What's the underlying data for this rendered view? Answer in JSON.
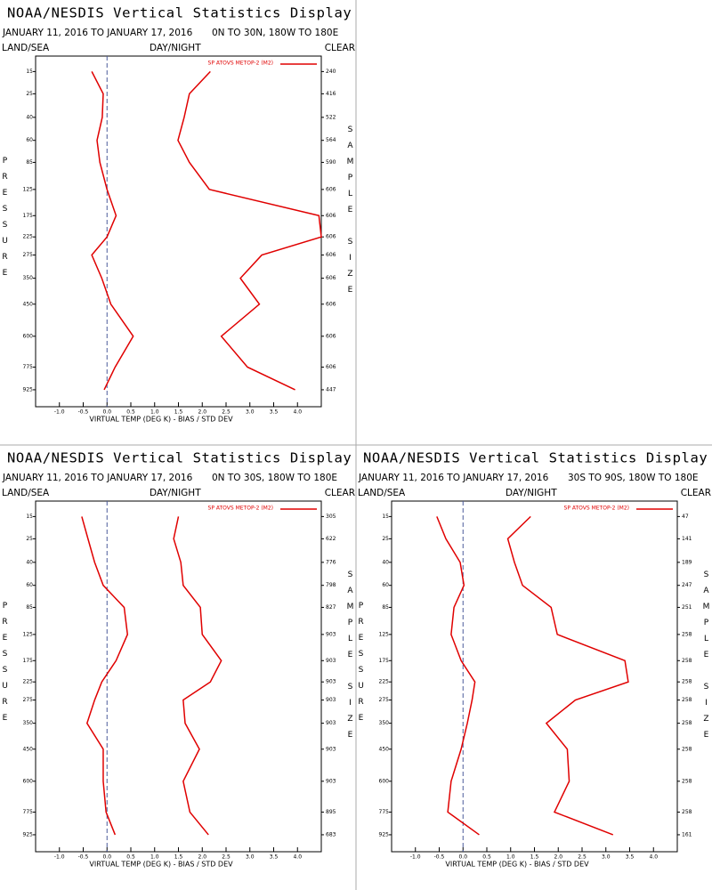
{
  "chart_data": [
    {
      "type": "line",
      "title": "NOAA/NESDIS Vertical Statistics Display",
      "date_range": "JANUARY 11, 2016 TO JANUARY 17, 2016",
      "region": "0N TO 30N, 180W TO 180E",
      "land_sea": "LAND/SEA",
      "day_night": "DAY/NIGHT",
      "clear": "CLEAR",
      "y_label": "PRESSURE",
      "y2_label": "SAMPLE SIZE",
      "x_label": "VIRTUAL TEMP (DEG K) - BIAS / STD DEV",
      "legend": "SP ATOVS METOP-2 (M2)",
      "y": [
        15,
        25,
        40,
        60,
        85,
        125,
        175,
        225,
        275,
        350,
        450,
        600,
        775,
        925
      ],
      "yticks": [
        15,
        25,
        40,
        60,
        85,
        125,
        175,
        225,
        275,
        350,
        450,
        600,
        775,
        925
      ],
      "ylim": [
        10,
        1050
      ],
      "xlim": [
        -1.5,
        4.5
      ],
      "xticks": [
        {
          "value": -1,
          "label": "-1.0"
        },
        -0.5,
        {
          "value": 0,
          "label": "0.0"
        },
        0.5,
        {
          "value": 1,
          "label": "1.0"
        },
        1.5,
        {
          "value": 2,
          "label": "2.0"
        },
        2.5,
        {
          "value": 3,
          "label": "3.0"
        },
        3.5,
        {
          "value": 4,
          "label": "4.0"
        }
      ],
      "sample_size": [
        240,
        416,
        522,
        564,
        590,
        606,
        606,
        606,
        606,
        606,
        606,
        606,
        606,
        447
      ],
      "series": [
        {
          "color": "#e00000",
          "values": [
            -0.32,
            -0.08,
            -0.1,
            -0.21,
            -0.15,
            0.0,
            0.19,
            0.0,
            -0.32,
            -0.11,
            0.08,
            0.55,
            0.17,
            -0.06
          ]
        },
        {
          "color": "#e00000",
          "values": [
            2.17,
            1.73,
            1.62,
            1.49,
            1.73,
            2.15,
            4.45,
            4.5,
            3.25,
            2.8,
            3.2,
            2.4,
            2.95,
            3.95
          ]
        }
      ]
    },
    {
      "type": "line",
      "title": "NOAA/NESDIS Vertical Statistics Display",
      "date_range": "JANUARY 11, 2016 TO JANUARY 17, 2016",
      "region": "0N TO 30S, 180W TO 180E",
      "land_sea": "LAND/SEA",
      "day_night": "DAY/NIGHT",
      "clear": "CLEAR",
      "y_label": "PRESSURE",
      "y2_label": "SAMPLE SIZE",
      "x_label": "VIRTUAL TEMP (DEG K) - BIAS / STD DEV",
      "legend": "SP ATOVS METOP-2 (M2)",
      "y": [
        15,
        25,
        40,
        60,
        85,
        125,
        175,
        225,
        275,
        350,
        450,
        600,
        775,
        925
      ],
      "yticks": [
        15,
        25,
        40,
        60,
        85,
        125,
        175,
        225,
        275,
        350,
        450,
        600,
        775,
        925
      ],
      "ylim": [
        10,
        1050
      ],
      "xlim": [
        -1.5,
        4.5
      ],
      "xticks": [
        {
          "value": -1,
          "label": "-1.0"
        },
        -0.5,
        {
          "value": 0,
          "label": "0.0"
        },
        0.5,
        {
          "value": 1,
          "label": "1.0"
        },
        1.5,
        {
          "value": 2,
          "label": "2.0"
        },
        2.5,
        {
          "value": 3,
          "label": "3.0"
        },
        3.5,
        {
          "value": 4,
          "label": "4.0"
        }
      ],
      "sample_size": [
        305,
        622,
        776,
        798,
        827,
        903,
        903,
        903,
        903,
        903,
        903,
        903,
        895,
        683
      ],
      "series": [
        {
          "color": "#e00000",
          "values": [
            -0.53,
            -0.4,
            -0.26,
            -0.08,
            0.36,
            0.43,
            0.19,
            -0.11,
            -0.26,
            -0.42,
            -0.08,
            -0.08,
            -0.02,
            0.17
          ]
        },
        {
          "color": "#e00000",
          "values": [
            1.5,
            1.4,
            1.55,
            1.6,
            1.96,
            2.0,
            2.4,
            2.17,
            1.6,
            1.64,
            1.94,
            1.6,
            1.74,
            2.13
          ]
        }
      ]
    },
    {
      "type": "line",
      "title": "NOAA/NESDIS Vertical Statistics Display",
      "date_range": "JANUARY 11, 2016 TO JANUARY 17, 2016",
      "region": "30S TO 90S, 180W TO 180E",
      "land_sea": "LAND/SEA",
      "day_night": "DAY/NIGHT",
      "clear": "CLEAR",
      "y_label": "PRESSURE",
      "y2_label": "SAMPLE SIZE",
      "x_label": "VIRTUAL TEMP (DEG K) - BIAS / STD DEV",
      "legend": "SP ATOVS METOP-2 (M2)",
      "y": [
        15,
        25,
        40,
        60,
        85,
        125,
        175,
        225,
        275,
        350,
        450,
        600,
        775,
        925
      ],
      "yticks": [
        15,
        25,
        40,
        60,
        85,
        125,
        175,
        225,
        275,
        350,
        450,
        600,
        775,
        925
      ],
      "ylim": [
        10,
        1050
      ],
      "xlim": [
        -1.5,
        4.5
      ],
      "xticks": [
        {
          "value": -1,
          "label": "-1.0"
        },
        -0.5,
        {
          "value": 0,
          "label": "0.0"
        },
        0.5,
        {
          "value": 1,
          "label": "1.0"
        },
        1.5,
        {
          "value": 2,
          "label": "2.0"
        },
        2.5,
        {
          "value": 3,
          "label": "3.0"
        },
        3.5,
        {
          "value": 4,
          "label": "4.0"
        }
      ],
      "sample_size": [
        47,
        141,
        189,
        247,
        251,
        258,
        258,
        258,
        258,
        258,
        258,
        258,
        258,
        161
      ],
      "series": [
        {
          "color": "#e00000",
          "values": [
            -0.55,
            -0.36,
            -0.06,
            0.02,
            -0.19,
            -0.25,
            -0.04,
            0.25,
            0.19,
            0.09,
            -0.04,
            -0.25,
            -0.32,
            0.34
          ]
        },
        {
          "color": "#e00000",
          "values": [
            1.42,
            0.94,
            1.08,
            1.25,
            1.85,
            1.98,
            3.4,
            3.47,
            2.36,
            1.75,
            2.19,
            2.23,
            1.92,
            3.15
          ]
        }
      ]
    }
  ]
}
